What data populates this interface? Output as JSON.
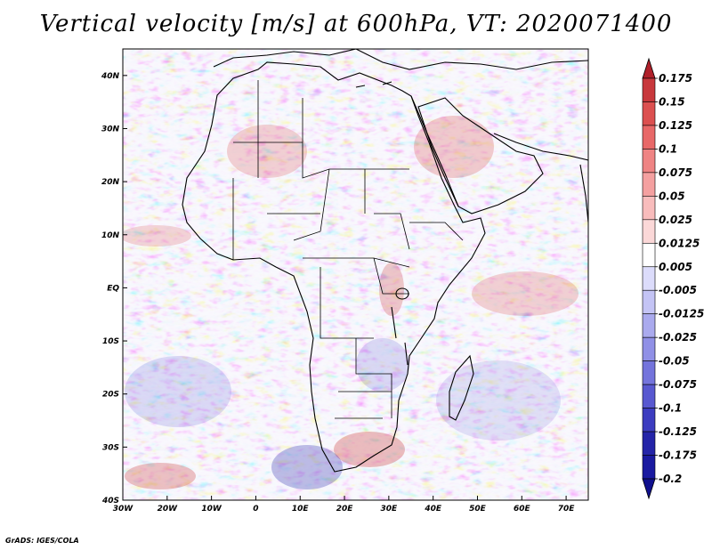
{
  "title": "Vertical velocity [m/s] at 600hPa, VT: 2020071400",
  "credit": "GrADS: IGES/COLA",
  "map": {
    "lat_range": [
      -40,
      45
    ],
    "lon_range": [
      -30,
      75
    ],
    "lat_labels": [
      "40N",
      "30N",
      "20N",
      "10N",
      "EQ",
      "10S",
      "20S",
      "30S",
      "40S"
    ],
    "lon_labels": [
      "30W",
      "20W",
      "10W",
      "0",
      "10E",
      "20E",
      "30E",
      "40E",
      "50E",
      "60E",
      "70E"
    ],
    "field_description": "Vertical velocity field at 600hPa, mottled red (ascent) and blue (descent) pattern over Africa, Middle East and surrounding oceans"
  },
  "colorbar": {
    "levels": [
      "0.175",
      "0.15",
      "0.125",
      "0.1",
      "0.075",
      "0.05",
      "0.025",
      "0.0125",
      "0.005",
      "-0.005",
      "-0.0125",
      "-0.025",
      "-0.05",
      "-0.075",
      "-0.1",
      "-0.125",
      "-0.175",
      "-0.2"
    ],
    "colors": [
      "#b0202a",
      "#c8383c",
      "#dc5050",
      "#e86868",
      "#ef8484",
      "#f4a0a0",
      "#f8bcbc",
      "#fbd8d8",
      "#ffffff",
      "#dcdcfb",
      "#c4c4f5",
      "#aaaaee",
      "#9090e6",
      "#7474dc",
      "#5858d0",
      "#3c3cc0",
      "#2424a8",
      "#1a1aa0",
      "#10108e"
    ]
  }
}
